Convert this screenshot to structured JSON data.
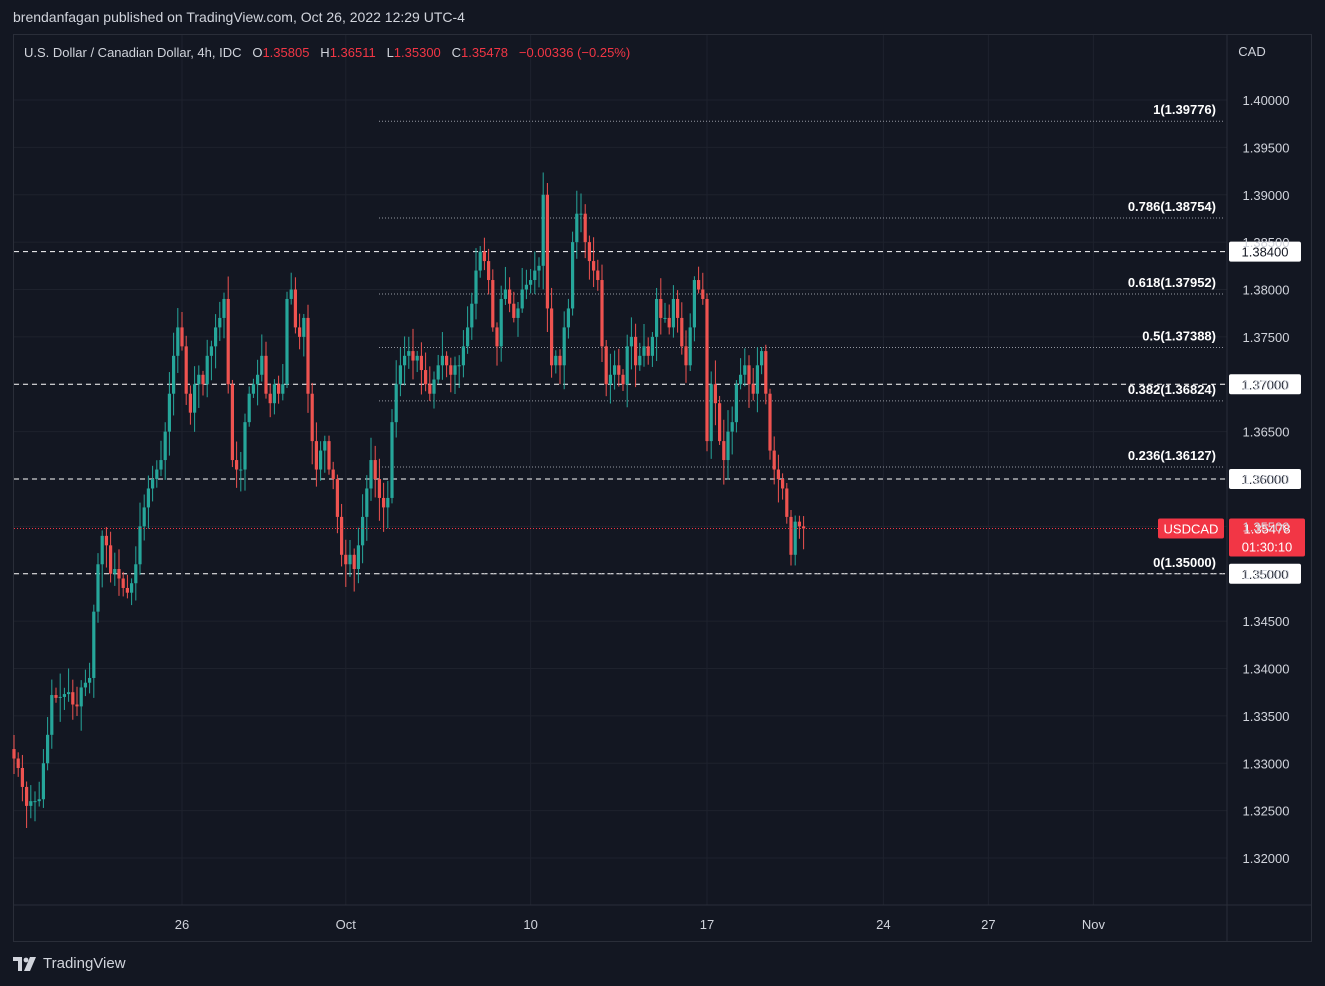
{
  "publisher_line": "brendanfagan published on TradingView.com, Oct 26, 2022 12:29 UTC-4",
  "footer_brand": "TradingView",
  "legend": {
    "symbol_desc": "U.S. Dollar / Canadian Dollar, 4h, IDC",
    "open_label": "O",
    "open": "1.35805",
    "high_label": "H",
    "high": "1.36511",
    "low_label": "L",
    "low": "1.35300",
    "close_label": "C",
    "close": "1.35478",
    "change": "−0.00336 (−0.25%)"
  },
  "colors": {
    "background": "#131722",
    "up": "#26a69a",
    "down": "#ef5350",
    "grid": "#1e222d",
    "text": "#d1d4dc",
    "price_tag": "#f23645"
  },
  "chart_data": {
    "type": "candlestick",
    "symbol": "USDCAD",
    "currency": "CAD",
    "timeframe": "4h",
    "ylim": [
      1.315,
      1.4065
    ],
    "y_ticks": [
      "1.40000",
      "1.39500",
      "1.39000",
      "1.38500",
      "1.38000",
      "1.37500",
      "1.37000",
      "1.36500",
      "1.36000",
      "1.35500",
      "1.35000",
      "1.34500",
      "1.34000",
      "1.33500",
      "1.33000",
      "1.32500",
      "1.32000"
    ],
    "x_ticks": [
      {
        "label": "26",
        "idx": 40
      },
      {
        "label": "Oct",
        "idx": 79
      },
      {
        "label": "10",
        "idx": 123
      },
      {
        "label": "17",
        "idx": 165
      },
      {
        "label": "24",
        "idx": 207
      },
      {
        "label": "27",
        "idx": 232
      },
      {
        "label": "Nov",
        "idx": 257
      }
    ],
    "horizontal_levels": [
      {
        "price": 1.384,
        "label": "1.38400"
      },
      {
        "price": 1.37,
        "label": "1.37000"
      },
      {
        "price": 1.36,
        "label": "1.36000"
      },
      {
        "price": 1.35,
        "label": "1.35000"
      }
    ],
    "fib_levels": [
      {
        "ratio": "1",
        "price": 1.39776,
        "label": "1(1.39776)"
      },
      {
        "ratio": "0.786",
        "price": 1.38754,
        "label": "0.786(1.38754)"
      },
      {
        "ratio": "0.618",
        "price": 1.37952,
        "label": "0.618(1.37952)"
      },
      {
        "ratio": "0.5",
        "price": 1.37388,
        "label": "0.5(1.37388)"
      },
      {
        "ratio": "0.382",
        "price": 1.36824,
        "label": "0.382(1.36824)"
      },
      {
        "ratio": "0.236",
        "price": 1.36127,
        "label": "0.236(1.36127)"
      },
      {
        "ratio": "0",
        "price": 1.35,
        "label": "0(1.35000)"
      }
    ],
    "last_price": {
      "symbol_label": "USDCAD",
      "price": "1.35478",
      "countdown": "01:30:10",
      "value": 1.35478
    },
    "closes": [
      1.3305,
      1.3295,
      1.3275,
      1.3255,
      1.326,
      1.326,
      1.3262,
      1.33,
      1.333,
      1.3372,
      1.3369,
      1.337,
      1.3373,
      1.3375,
      1.3362,
      1.336,
      1.338,
      1.3385,
      1.339,
      1.346,
      1.351,
      1.354,
      1.353,
      1.35,
      1.3505,
      1.3495,
      1.3485,
      1.348,
      1.349,
      1.351,
      1.355,
      1.357,
      1.359,
      1.36,
      1.361,
      1.362,
      1.365,
      1.369,
      1.373,
      1.376,
      1.374,
      1.369,
      1.367,
      1.37,
      1.371,
      1.37,
      1.373,
      1.374,
      1.376,
      1.377,
      1.379,
      1.37,
      1.362,
      1.361,
      1.361,
      1.366,
      1.369,
      1.37,
      1.371,
      1.373,
      1.369,
      1.368,
      1.37,
      1.369,
      1.37,
      1.379,
      1.38,
      1.376,
      1.375,
      1.377,
      1.369,
      1.364,
      1.361,
      1.363,
      1.364,
      1.361,
      1.36,
      1.356,
      1.352,
      1.351,
      1.352,
      1.3505,
      1.353,
      1.356,
      1.359,
      1.362,
      1.36,
      1.358,
      1.357,
      1.358,
      1.366,
      1.37,
      1.372,
      1.373,
      1.3735,
      1.3725,
      1.373,
      1.3715,
      1.37,
      1.369,
      1.3705,
      1.372,
      1.373,
      1.372,
      1.371,
      1.372,
      1.372,
      1.374,
      1.376,
      1.3785,
      1.382,
      1.384,
      1.383,
      1.381,
      1.376,
      1.374,
      1.379,
      1.38,
      1.3785,
      1.377,
      1.378,
      1.38,
      1.3805,
      1.381,
      1.382,
      1.3825,
      1.39,
      1.378,
      1.372,
      1.373,
      1.372,
      1.376,
      1.378,
      1.385,
      1.388,
      1.388,
      1.385,
      1.383,
      1.382,
      1.381,
      1.374,
      1.37,
      1.371,
      1.372,
      1.371,
      1.37,
      1.374,
      1.375,
      1.372,
      1.373,
      1.374,
      1.373,
      1.375,
      1.379,
      1.377,
      1.377,
      1.376,
      1.379,
      1.377,
      1.374,
      1.372,
      1.376,
      1.381,
      1.38,
      1.379,
      1.364,
      1.37,
      1.368,
      1.364,
      1.362,
      1.365,
      1.366,
      1.37,
      1.371,
      1.372,
      1.37,
      1.369,
      1.372,
      1.3735,
      1.369,
      1.363,
      1.361,
      1.36,
      1.359,
      1.356,
      1.352,
      1.3555,
      1.355,
      1.35478
    ]
  }
}
